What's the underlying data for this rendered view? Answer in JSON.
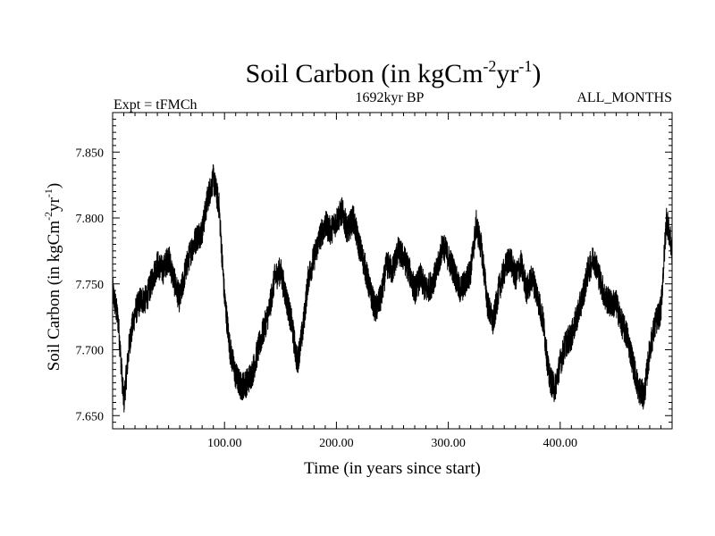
{
  "chart_data": {
    "type": "line",
    "title": {
      "main": "Soil Carbon (in kgCm",
      "sup1": "-2",
      "mid": "yr",
      "sup2": "-1",
      "end": ")"
    },
    "header": {
      "left": "Expt = tFMCh",
      "center": "1692kyr BP",
      "right": "ALL_MONTHS"
    },
    "xlabel": "Time (in years since start)",
    "ylabel": {
      "main": "Soil Carbon (in kgCm",
      "sup1": "-2",
      "mid": "yr",
      "sup2": "-1",
      "end": ")"
    },
    "xlim": [
      0,
      500
    ],
    "ylim": [
      7.64,
      7.88
    ],
    "grid": false,
    "x_ticks": [
      100,
      200,
      300,
      400
    ],
    "x_tick_labels": [
      "100.00",
      "200.00",
      "300.00",
      "400.00"
    ],
    "y_ticks": [
      7.65,
      7.7,
      7.75,
      7.8,
      7.85
    ],
    "y_tick_labels": [
      "7.650",
      "7.700",
      "7.750",
      "7.800",
      "7.850"
    ],
    "line_color": "#000000",
    "series": [
      {
        "x": [
          0,
          5,
          10,
          15,
          20,
          25,
          30,
          35,
          40,
          45,
          50,
          55,
          60,
          65,
          70,
          75,
          80,
          85,
          90,
          95,
          100,
          105,
          110,
          115,
          120,
          125,
          130,
          135,
          140,
          145,
          150,
          155,
          160,
          165,
          170,
          175,
          180,
          185,
          190,
          195,
          200,
          205,
          210,
          215,
          220,
          225,
          230,
          235,
          240,
          245,
          250,
          255,
          260,
          265,
          270,
          275,
          280,
          285,
          290,
          295,
          300,
          305,
          310,
          315,
          320,
          325,
          330,
          335,
          340,
          345,
          350,
          355,
          360,
          365,
          370,
          375,
          380,
          385,
          390,
          395,
          400,
          405,
          410,
          415,
          420,
          425,
          430,
          435,
          440,
          445,
          450,
          455,
          460,
          465,
          470,
          475,
          480,
          485,
          490,
          495,
          500
        ],
        "values": [
          7.745,
          7.722,
          7.66,
          7.705,
          7.728,
          7.738,
          7.738,
          7.752,
          7.765,
          7.76,
          7.77,
          7.752,
          7.738,
          7.76,
          7.775,
          7.785,
          7.79,
          7.815,
          7.83,
          7.81,
          7.74,
          7.7,
          7.68,
          7.672,
          7.675,
          7.683,
          7.7,
          7.715,
          7.73,
          7.755,
          7.76,
          7.74,
          7.72,
          7.69,
          7.715,
          7.755,
          7.77,
          7.785,
          7.795,
          7.79,
          7.798,
          7.805,
          7.79,
          7.8,
          7.78,
          7.765,
          7.745,
          7.73,
          7.74,
          7.765,
          7.76,
          7.775,
          7.77,
          7.76,
          7.745,
          7.755,
          7.745,
          7.75,
          7.76,
          7.78,
          7.77,
          7.76,
          7.745,
          7.75,
          7.76,
          7.795,
          7.775,
          7.735,
          7.72,
          7.745,
          7.76,
          7.77,
          7.755,
          7.765,
          7.745,
          7.755,
          7.74,
          7.72,
          7.68,
          7.67,
          7.69,
          7.705,
          7.71,
          7.725,
          7.74,
          7.76,
          7.77,
          7.755,
          7.74,
          7.735,
          7.735,
          7.72,
          7.71,
          7.69,
          7.67,
          7.665,
          7.7,
          7.72,
          7.73,
          7.8,
          7.775
        ]
      }
    ]
  }
}
